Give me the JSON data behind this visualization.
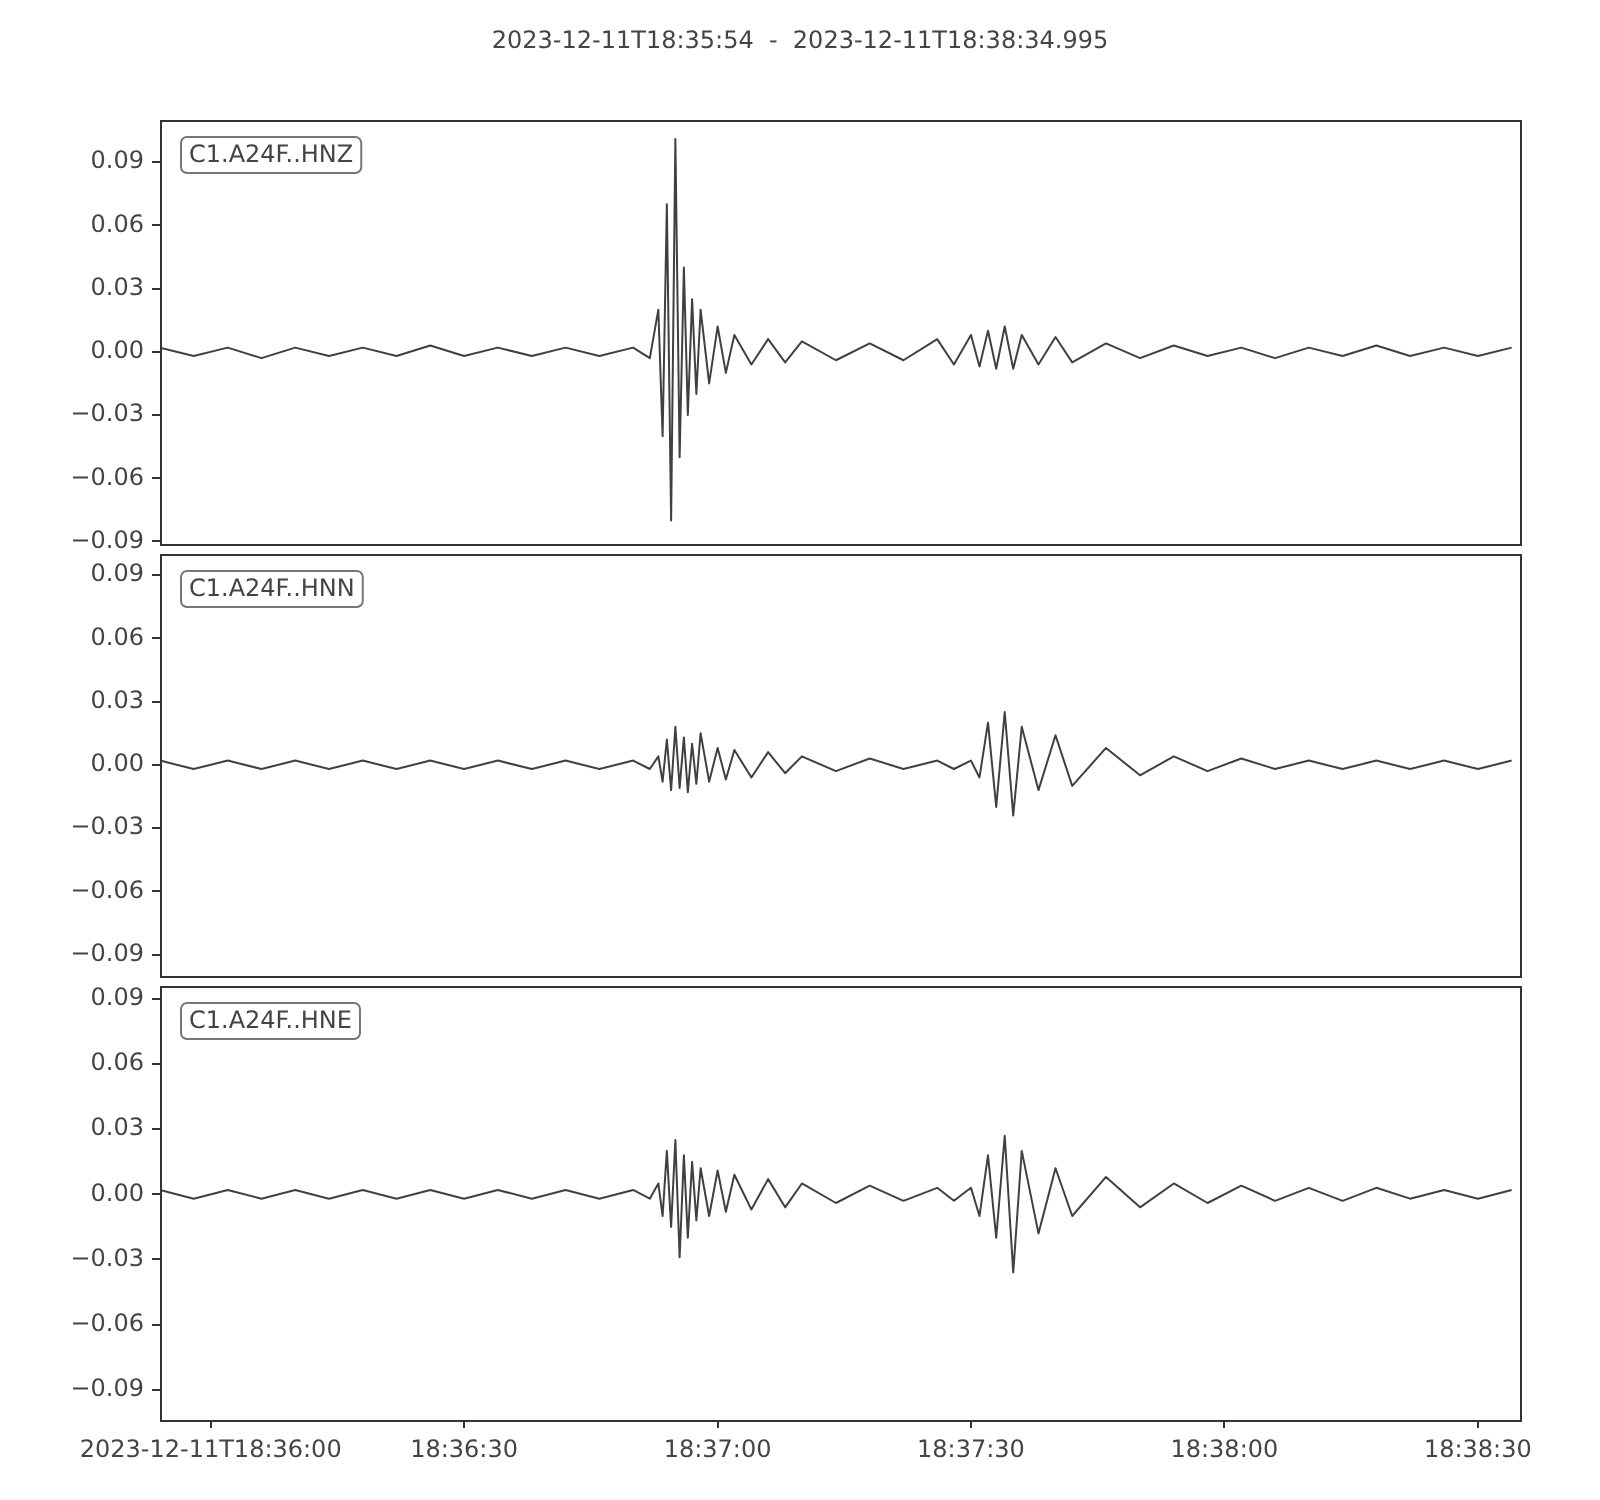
{
  "chart_data": [
    {
      "type": "line",
      "title": "2023-12-11T18:35:54  -  2023-12-11T18:38:34.995",
      "annotations": [
        "C1.A24F..HNZ"
      ],
      "color": "#404040",
      "tick_labels": "y",
      "xlim": [
        18.598333,
        18.643054
      ],
      "ylim": [
        -0.091,
        0.11
      ],
      "yticks": [
        {
          "value": -0.09,
          "label": "−0.09"
        },
        {
          "value": -0.06,
          "label": "−0.06"
        },
        {
          "value": -0.03,
          "label": "−0.03"
        },
        {
          "value": 0,
          "label": "0.00"
        },
        {
          "value": 0.03,
          "label": "0.03"
        },
        {
          "value": 0.06,
          "label": "0.06"
        },
        {
          "value": 0.09,
          "label": "0.09"
        }
      ],
      "x": [
        18.598333,
        18.59944,
        18.60056,
        18.60167,
        18.60278,
        18.60389,
        18.605,
        18.60611,
        18.60722,
        18.60833,
        18.60944,
        18.61056,
        18.61167,
        18.61278,
        18.61389,
        18.61444,
        18.61472,
        18.61486,
        18.615,
        18.61514,
        18.61528,
        18.61542,
        18.61556,
        18.61569,
        18.61583,
        18.61597,
        18.61611,
        18.61639,
        18.61667,
        18.61694,
        18.61722,
        18.61778,
        18.61833,
        18.61889,
        18.61944,
        18.62056,
        18.62167,
        18.62278,
        18.62389,
        18.62444,
        18.625,
        18.62528,
        18.62556,
        18.62583,
        18.62611,
        18.62639,
        18.62667,
        18.62722,
        18.62778,
        18.62833,
        18.62944,
        18.63056,
        18.63167,
        18.63278,
        18.63389,
        18.635,
        18.63611,
        18.63722,
        18.63833,
        18.63944,
        18.64056,
        18.64167,
        18.64278
      ],
      "values": [
        0.002,
        -0.002,
        0.002,
        -0.003,
        0.002,
        -0.002,
        0.002,
        -0.002,
        0.003,
        -0.002,
        0.002,
        -0.002,
        0.002,
        -0.002,
        0.002,
        -0.003,
        0.02,
        -0.04,
        0.07,
        -0.08,
        0.101,
        -0.05,
        0.04,
        -0.03,
        0.025,
        -0.02,
        0.02,
        -0.015,
        0.012,
        -0.01,
        0.008,
        -0.006,
        0.006,
        -0.005,
        0.005,
        -0.004,
        0.004,
        -0.004,
        0.006,
        -0.006,
        0.008,
        -0.007,
        0.01,
        -0.008,
        0.012,
        -0.008,
        0.008,
        -0.006,
        0.007,
        -0.005,
        0.004,
        -0.003,
        0.003,
        -0.002,
        0.002,
        -0.003,
        0.002,
        -0.002,
        0.003,
        -0.002,
        0.002,
        -0.002,
        0.002
      ]
    },
    {
      "type": "line",
      "annotations": [
        "C1.A24F..HNN"
      ],
      "color": "#404040",
      "tick_labels": "y",
      "xlim": [
        18.598333,
        18.643054
      ],
      "ylim": [
        -0.1,
        0.1
      ],
      "yticks": [
        {
          "value": -0.09,
          "label": "−0.09"
        },
        {
          "value": -0.06,
          "label": "−0.06"
        },
        {
          "value": -0.03,
          "label": "−0.03"
        },
        {
          "value": 0,
          "label": "0.00"
        },
        {
          "value": 0.03,
          "label": "0.03"
        },
        {
          "value": 0.06,
          "label": "0.06"
        },
        {
          "value": 0.09,
          "label": "0.09"
        }
      ],
      "x": [
        18.598333,
        18.59944,
        18.60056,
        18.60167,
        18.60278,
        18.60389,
        18.605,
        18.60611,
        18.60722,
        18.60833,
        18.60944,
        18.61056,
        18.61167,
        18.61278,
        18.61389,
        18.61444,
        18.61472,
        18.61486,
        18.615,
        18.61514,
        18.61528,
        18.61542,
        18.61556,
        18.61569,
        18.61583,
        18.61597,
        18.61611,
        18.61639,
        18.61667,
        18.61694,
        18.61722,
        18.61778,
        18.61833,
        18.61889,
        18.61944,
        18.62056,
        18.62167,
        18.62278,
        18.62389,
        18.62444,
        18.625,
        18.62528,
        18.62556,
        18.62583,
        18.62611,
        18.62639,
        18.62667,
        18.62722,
        18.62778,
        18.62833,
        18.62944,
        18.63056,
        18.63167,
        18.63278,
        18.63389,
        18.635,
        18.63611,
        18.63722,
        18.63833,
        18.63944,
        18.64056,
        18.64167,
        18.64278
      ],
      "values": [
        0.002,
        -0.002,
        0.002,
        -0.002,
        0.002,
        -0.002,
        0.002,
        -0.002,
        0.002,
        -0.002,
        0.002,
        -0.002,
        0.002,
        -0.002,
        0.002,
        -0.002,
        0.004,
        -0.008,
        0.012,
        -0.012,
        0.018,
        -0.011,
        0.013,
        -0.013,
        0.01,
        -0.009,
        0.015,
        -0.008,
        0.008,
        -0.007,
        0.007,
        -0.006,
        0.006,
        -0.004,
        0.004,
        -0.003,
        0.003,
        -0.002,
        0.002,
        -0.002,
        0.002,
        -0.006,
        0.02,
        -0.02,
        0.025,
        -0.024,
        0.018,
        -0.012,
        0.014,
        -0.01,
        0.008,
        -0.005,
        0.004,
        -0.003,
        0.003,
        -0.002,
        0.002,
        -0.002,
        0.002,
        -0.002,
        0.002,
        -0.002,
        0.002
      ]
    },
    {
      "type": "line",
      "annotations": [
        "C1.A24F..HNE"
      ],
      "color": "#404040",
      "xlim": [
        18.598333,
        18.643054
      ],
      "xticks": [
        {
          "value": 18.6,
          "label": "2023-12-11T18:36:00"
        },
        {
          "value": 18.608333,
          "label": "18:36:30"
        },
        {
          "value": 18.616667,
          "label": "18:37:00"
        },
        {
          "value": 18.625,
          "label": "18:37:30"
        },
        {
          "value": 18.633333,
          "label": "18:38:00"
        },
        {
          "value": 18.641667,
          "label": "18:38:30"
        }
      ],
      "ylim": [
        -0.104,
        0.096
      ],
      "yticks": [
        {
          "value": -0.09,
          "label": "−0.09"
        },
        {
          "value": -0.06,
          "label": "−0.06"
        },
        {
          "value": -0.03,
          "label": "−0.03"
        },
        {
          "value": 0,
          "label": "0.00"
        },
        {
          "value": 0.03,
          "label": "0.03"
        },
        {
          "value": 0.06,
          "label": "0.06"
        },
        {
          "value": 0.09,
          "label": "0.09"
        }
      ],
      "x": [
        18.598333,
        18.59944,
        18.60056,
        18.60167,
        18.60278,
        18.60389,
        18.605,
        18.60611,
        18.60722,
        18.60833,
        18.60944,
        18.61056,
        18.61167,
        18.61278,
        18.61389,
        18.61444,
        18.61472,
        18.61486,
        18.615,
        18.61514,
        18.61528,
        18.61542,
        18.61556,
        18.61569,
        18.61583,
        18.61597,
        18.61611,
        18.61639,
        18.61667,
        18.61694,
        18.61722,
        18.61778,
        18.61833,
        18.61889,
        18.61944,
        18.62056,
        18.62167,
        18.62278,
        18.62389,
        18.62444,
        18.625,
        18.62528,
        18.62556,
        18.62583,
        18.62611,
        18.62639,
        18.62667,
        18.62722,
        18.62778,
        18.62833,
        18.62944,
        18.63056,
        18.63167,
        18.63278,
        18.63389,
        18.635,
        18.63611,
        18.63722,
        18.63833,
        18.63944,
        18.64056,
        18.64167,
        18.64278
      ],
      "values": [
        0.002,
        -0.002,
        0.002,
        -0.002,
        0.002,
        -0.002,
        0.002,
        -0.002,
        0.002,
        -0.002,
        0.002,
        -0.002,
        0.002,
        -0.002,
        0.002,
        -0.002,
        0.005,
        -0.01,
        0.02,
        -0.015,
        0.025,
        -0.029,
        0.018,
        -0.02,
        0.015,
        -0.012,
        0.012,
        -0.01,
        0.011,
        -0.008,
        0.009,
        -0.007,
        0.007,
        -0.006,
        0.005,
        -0.004,
        0.004,
        -0.003,
        0.003,
        -0.003,
        0.003,
        -0.01,
        0.018,
        -0.02,
        0.027,
        -0.036,
        0.02,
        -0.018,
        0.012,
        -0.01,
        0.008,
        -0.006,
        0.005,
        -0.004,
        0.004,
        -0.003,
        0.003,
        -0.003,
        0.003,
        -0.002,
        0.002,
        -0.002,
        0.002
      ]
    }
  ]
}
